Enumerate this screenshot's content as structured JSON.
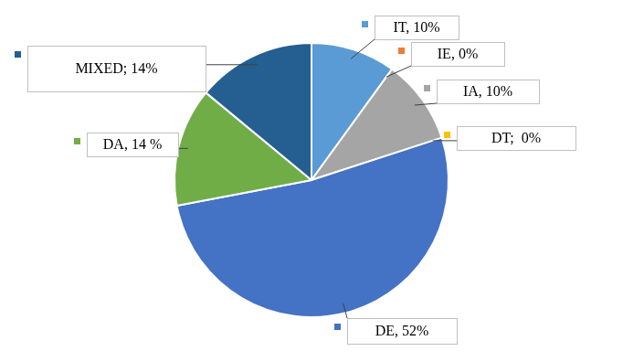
{
  "chart_data": {
    "type": "pie",
    "categories": [
      "IT",
      "IE",
      "IA",
      "DT",
      "DE",
      "DA",
      "MIXED"
    ],
    "values": [
      10,
      0,
      10,
      0,
      52,
      14,
      14
    ],
    "value_labels": [
      "IT, 10%",
      "IE, 0%",
      "IA, 10%",
      "DT;  0%",
      "DE, 52%",
      "DA, 14 %",
      "MIXED; 14%"
    ],
    "colors": [
      "#5b9bd5",
      "#ed7d31",
      "#a5a5a5",
      "#ffc000",
      "#4472c4",
      "#70ad47",
      "#255e91"
    ],
    "data_labels": true
  }
}
